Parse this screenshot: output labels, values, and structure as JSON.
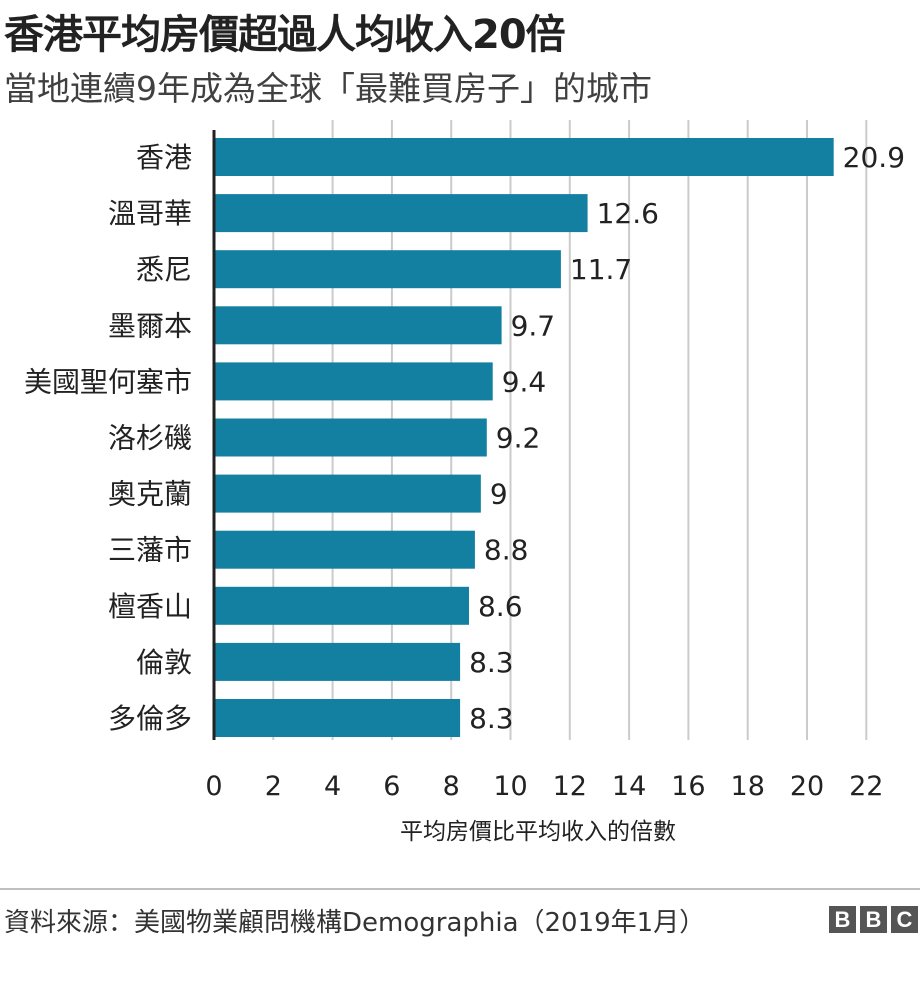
{
  "title": "香港平均房價超過人均收入20倍",
  "subtitle": "當地連續9年成為全球「最難買房子」的城市",
  "source": "資料來源：美國物業顧問機構Demographia（2019年1月）",
  "logo": [
    "B",
    "B",
    "C"
  ],
  "colors": {
    "bar": "#1380a1",
    "grid": "#cbcbcb",
    "axis": "#222222",
    "text": "#222222"
  },
  "chart_data": {
    "type": "bar",
    "orientation": "horizontal",
    "categories": [
      "香港",
      "溫哥華",
      "悉尼",
      "墨爾本",
      "美國聖何塞市",
      "洛杉磯",
      "奧克蘭",
      "三藩市",
      "檀香山",
      "倫敦",
      "多倫多"
    ],
    "values": [
      20.9,
      12.6,
      11.7,
      9.7,
      9.4,
      9.2,
      9,
      8.8,
      8.6,
      8.3,
      8.3
    ],
    "value_labels": [
      "20.9",
      "12.6",
      "11.7",
      "9.7",
      "9.4",
      "9.2",
      "9",
      "8.8",
      "8.6",
      "8.3",
      "8.3"
    ],
    "xlabel": "平均房價比平均收入的倍數",
    "xlim": [
      0,
      22
    ],
    "xticks": [
      0,
      2,
      4,
      6,
      8,
      10,
      12,
      14,
      16,
      18,
      20,
      22
    ],
    "grid": true
  }
}
